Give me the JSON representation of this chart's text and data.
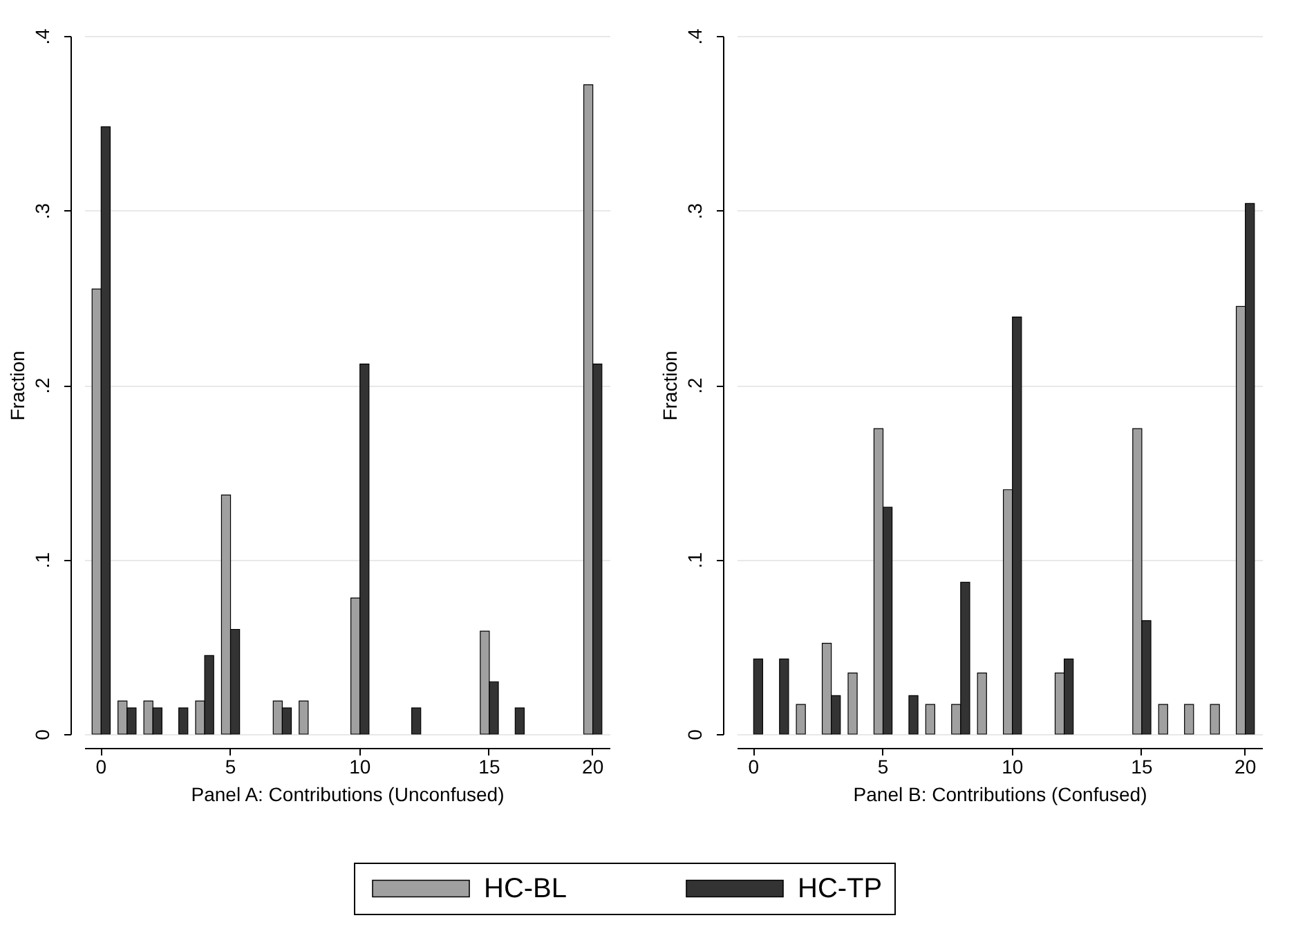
{
  "chart_data": [
    {
      "type": "bar",
      "xlabel": "Panel A: Contributions (Unconfused)",
      "ylabel": "Fraction",
      "categories": [
        "0",
        null,
        null,
        null,
        null,
        "5",
        null,
        null,
        null,
        null,
        "10",
        null,
        null,
        null,
        null,
        "15",
        null,
        null,
        null,
        "20"
      ],
      "series": [
        {
          "name": "HC-BL",
          "color": "#a0a0a0",
          "values": [
            0.255,
            0.019,
            0.019,
            null,
            0.019,
            0.137,
            null,
            0.019,
            0.019,
            null,
            0.078,
            null,
            null,
            null,
            null,
            0.059,
            null,
            null,
            null,
            0.372
          ]
        },
        {
          "name": "HC-TP",
          "color": "#333333",
          "values": [
            0.348,
            0.015,
            0.015,
            0.015,
            0.045,
            0.06,
            null,
            0.015,
            null,
            null,
            0.212,
            null,
            0.015,
            null,
            null,
            0.03,
            0.015,
            null,
            null,
            0.212
          ]
        }
      ],
      "ylim": [
        0,
        0.4
      ],
      "yticks": [
        0,
        {
          "value": 0.1,
          "label": ".1"
        },
        {
          "value": 0.2,
          "label": ".2"
        },
        {
          "value": 0.3,
          "label": ".3"
        },
        {
          "value": 0.4,
          "label": ".4"
        }
      ],
      "grid": "y",
      "legend": "bottom"
    },
    {
      "type": "bar",
      "xlabel": "Panel B: Contributions (Confused)",
      "ylabel": "Fraction",
      "categories": [
        "0",
        null,
        null,
        null,
        null,
        "5",
        null,
        null,
        null,
        null,
        "10",
        null,
        null,
        null,
        null,
        "15",
        null,
        null,
        null,
        "20"
      ],
      "series": [
        {
          "color": "#a0a0a0",
          "values": [
            null,
            null,
            0.017,
            0.052,
            0.035,
            0.175,
            null,
            0.017,
            0.017,
            0.035,
            0.14,
            null,
            0.035,
            null,
            null,
            0.175,
            0.017,
            0.017,
            0.017,
            0.245
          ]
        },
        {
          "color": "#333333",
          "values": [
            0.043,
            0.043,
            null,
            0.022,
            null,
            0.13,
            0.022,
            null,
            0.087,
            null,
            0.239,
            null,
            0.043,
            null,
            null,
            0.065,
            null,
            null,
            null,
            0.304
          ]
        }
      ],
      "ylim": [
        0,
        0.4
      ],
      "yticks": [
        0,
        {
          "value": 0.1,
          "label": ".1"
        },
        {
          "value": 0.2,
          "label": ".2"
        },
        {
          "value": 0.3,
          "label": ".3"
        },
        {
          "value": 0.4,
          "label": ".4"
        }
      ],
      "grid": "y"
    }
  ]
}
